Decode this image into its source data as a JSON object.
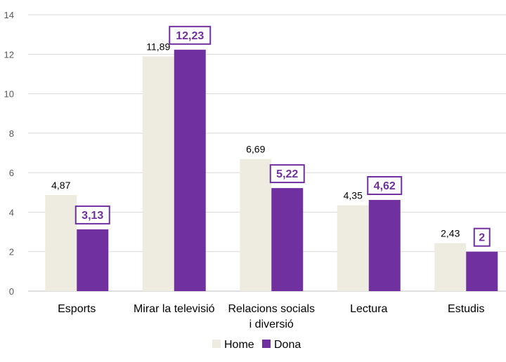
{
  "chart_data": {
    "type": "bar",
    "categories": [
      [
        "Esports"
      ],
      [
        "Mirar la televisió"
      ],
      [
        "Relacions socials",
        "i diversió"
      ],
      [
        "Lectura"
      ],
      [
        "Estudis"
      ]
    ],
    "series": [
      {
        "name": "Home",
        "color": "#eeece1",
        "values": [
          4.87,
          11.89,
          6.69,
          4.35,
          2.43
        ],
        "labels": [
          "4,87",
          "11,89",
          "6,69",
          "4,35",
          "2,43"
        ]
      },
      {
        "name": "Dona",
        "color": "#7030a0",
        "values": [
          3.13,
          12.23,
          5.22,
          4.62,
          2
        ],
        "labels": [
          "3,13",
          "12,23",
          "5,22",
          "4,62",
          "2"
        ]
      }
    ],
    "ylim": [
      0,
      14
    ],
    "yticks": [
      0,
      2,
      4,
      6,
      8,
      10,
      12,
      14
    ],
    "grid": true,
    "legend_position": "bottom"
  }
}
